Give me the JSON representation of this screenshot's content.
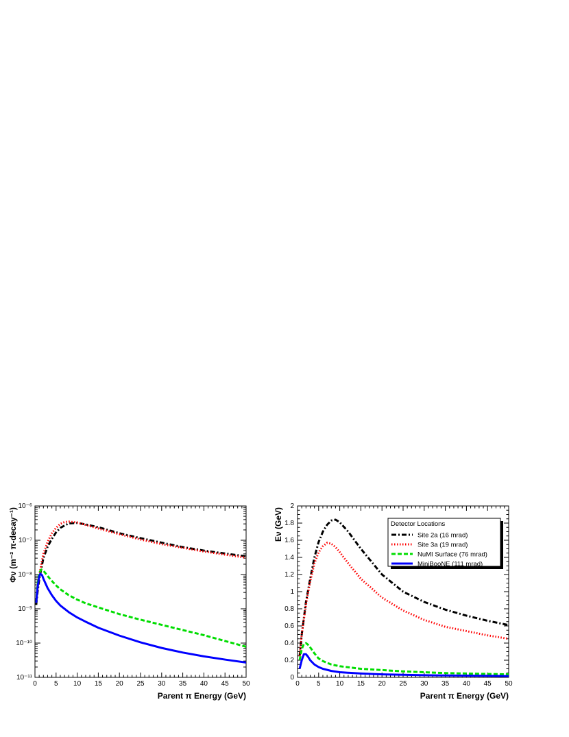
{
  "chart_data": [
    {
      "type": "line",
      "panel": "left",
      "title": "",
      "xlabel": "Parent π Energy (GeV)",
      "ylabel": "Φν (m⁻² π-decay⁻¹)",
      "xlim": [
        0,
        50
      ],
      "ylim": [
        1e-11,
        1e-06
      ],
      "yscale": "log",
      "grid": false,
      "x_ticks": [
        "0",
        "5",
        "10",
        "15",
        "20",
        "25",
        "30",
        "35",
        "40",
        "45",
        "50"
      ],
      "y_ticks": [
        "10⁻¹¹",
        "10⁻¹⁰",
        "10⁻⁹",
        "10⁻⁸",
        "10⁻⁷",
        "10⁻⁶"
      ],
      "series": [
        {
          "name": "Site 2a (16 mrad)",
          "color": "#000000",
          "style": "dashdot",
          "x": [
            0.3,
            0.6,
            1,
            1.5,
            2,
            3,
            4,
            5,
            6,
            8,
            10,
            12,
            15,
            20,
            25,
            30,
            35,
            40,
            45,
            50
          ],
          "y": [
            1.3e-09,
            3e-09,
            7e-09,
            1.5e-08,
            3e-08,
            6.5e-08,
            1.1e-07,
            1.7e-07,
            2.3e-07,
            3.1e-07,
            3.2e-07,
            2.9e-07,
            2.4e-07,
            1.6e-07,
            1.15e-07,
            8.5e-08,
            6.3e-08,
            5e-08,
            4.1e-08,
            3.4e-08
          ]
        },
        {
          "name": "Site 3a (19 mrad)",
          "color": "#ff0000",
          "style": "dotted",
          "x": [
            0.3,
            0.6,
            1,
            1.5,
            2,
            3,
            4,
            5,
            6,
            7,
            8,
            10,
            12,
            15,
            20,
            25,
            30,
            35,
            40,
            45,
            50
          ],
          "y": [
            1.5e-09,
            4e-09,
            9e-09,
            2e-08,
            4e-08,
            9e-08,
            1.6e-07,
            2.3e-07,
            3e-07,
            3.4e-07,
            3.5e-07,
            3.3e-07,
            2.8e-07,
            2.2e-07,
            1.5e-07,
            1.05e-07,
            7.7e-08,
            6e-08,
            4.7e-08,
            3.8e-08,
            3.1e-08
          ]
        },
        {
          "name": "NuMI Surface (76 mrad)",
          "color": "#00dd00",
          "style": "dashed",
          "x": [
            0.3,
            0.6,
            1,
            1.5,
            2,
            3,
            4,
            5,
            6,
            8,
            10,
            12,
            15,
            20,
            25,
            30,
            35,
            40,
            45,
            50
          ],
          "y": [
            1.5e-09,
            5e-09,
            1.1e-08,
            1.4e-08,
            1.3e-08,
            9e-09,
            6.5e-09,
            4.8e-09,
            3.7e-09,
            2.5e-09,
            1.85e-09,
            1.45e-09,
            1.1e-09,
            7e-10,
            4.8e-10,
            3.4e-10,
            2.4e-10,
            1.7e-10,
            1.15e-10,
            7.8e-11
          ]
        },
        {
          "name": "MiniBooNE (111 mrad)",
          "color": "#0000ff",
          "style": "solid",
          "x": [
            0.3,
            0.6,
            1,
            1.3,
            1.7,
            2,
            3,
            4,
            5,
            6,
            8,
            10,
            12,
            15,
            20,
            25,
            30,
            35,
            40,
            45,
            50
          ],
          "y": [
            1.5e-09,
            4e-09,
            9e-09,
            1.05e-08,
            9.5e-09,
            7.5e-09,
            4e-09,
            2.5e-09,
            1.7e-09,
            1.25e-09,
            8e-10,
            5.6e-10,
            4.2e-10,
            2.8e-10,
            1.65e-10,
            1.05e-10,
            7.2e-11,
            5.3e-11,
            4.1e-11,
            3.3e-11,
            2.7e-11
          ]
        }
      ]
    },
    {
      "type": "line",
      "panel": "right",
      "title": "",
      "xlabel": "Parent π Energy (GeV)",
      "ylabel": "Eν (GeV)",
      "xlim": [
        0,
        50
      ],
      "ylim": [
        0,
        2
      ],
      "yscale": "linear",
      "grid": false,
      "x_ticks": [
        "0",
        "5",
        "10",
        "15",
        "20",
        "25",
        "30",
        "35",
        "40",
        "45",
        "50"
      ],
      "y_ticks": [
        "0",
        "0.2",
        "0.4",
        "0.6",
        "0.8",
        "1",
        "1.2",
        "1.4",
        "1.6",
        "1.8",
        "2"
      ],
      "legend": {
        "title": "Detector Locations",
        "placement": "top-right",
        "entries": [
          "Site 2a (16 mrad)",
          "Site 3a (19 mrad)",
          "NuMI Surface (76 mrad)",
          "MiniBooNE (111 mrad)"
        ]
      },
      "series": [
        {
          "name": "Site 2a (16 mrad)",
          "color": "#000000",
          "style": "dashdot",
          "x": [
            0.5,
            1,
            2,
            3,
            4,
            5,
            6,
            7,
            8,
            9,
            10,
            12,
            15,
            20,
            25,
            30,
            35,
            40,
            45,
            50
          ],
          "y": [
            0.25,
            0.5,
            0.88,
            1.15,
            1.4,
            1.58,
            1.7,
            1.78,
            1.83,
            1.84,
            1.81,
            1.7,
            1.5,
            1.2,
            1.0,
            0.88,
            0.79,
            0.72,
            0.66,
            0.61
          ]
        },
        {
          "name": "Site 3a (19 mrad)",
          "color": "#ff0000",
          "style": "dotted",
          "x": [
            0.5,
            1,
            2,
            3,
            4,
            5,
            6,
            7,
            8,
            9,
            10,
            12,
            15,
            20,
            25,
            30,
            35,
            40,
            45,
            50
          ],
          "y": [
            0.25,
            0.5,
            0.85,
            1.12,
            1.33,
            1.46,
            1.53,
            1.57,
            1.56,
            1.52,
            1.46,
            1.33,
            1.15,
            0.93,
            0.78,
            0.67,
            0.59,
            0.54,
            0.49,
            0.45
          ]
        },
        {
          "name": "NuMI Surface (76 mrad)",
          "color": "#00dd00",
          "style": "dashed",
          "x": [
            0.5,
            1,
            1.5,
            2,
            2.5,
            3,
            4,
            5,
            6,
            8,
            10,
            15,
            20,
            25,
            30,
            35,
            40,
            45,
            50
          ],
          "y": [
            0.2,
            0.33,
            0.39,
            0.4,
            0.38,
            0.35,
            0.28,
            0.22,
            0.19,
            0.15,
            0.13,
            0.1,
            0.085,
            0.07,
            0.06,
            0.05,
            0.045,
            0.04,
            0.035
          ]
        },
        {
          "name": "MiniBooNE (111 mrad)",
          "color": "#0000ff",
          "style": "solid",
          "x": [
            0.5,
            1,
            1.5,
            2,
            2.5,
            3,
            4,
            5,
            6,
            8,
            10,
            15,
            20,
            25,
            30,
            35,
            40,
            45,
            50
          ],
          "y": [
            0.1,
            0.2,
            0.27,
            0.27,
            0.24,
            0.2,
            0.15,
            0.12,
            0.1,
            0.075,
            0.06,
            0.045,
            0.035,
            0.03,
            0.025,
            0.022,
            0.02,
            0.018,
            0.015
          ]
        }
      ]
    }
  ]
}
